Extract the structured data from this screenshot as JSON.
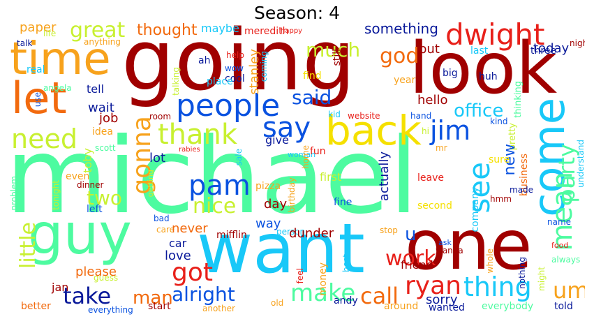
{
  "title": "Season: 4",
  "palette": {
    "dark_red": "#a00000",
    "red": "#e8201a",
    "orange": "#f26a0e",
    "amber": "#f7a21c",
    "yellow": "#f5e000",
    "lime": "#c8f030",
    "mint": "#4dfba0",
    "cyan": "#18c8f8",
    "blue": "#0a52e0",
    "navy": "#0a1a9a"
  },
  "words": [
    {
      "text": "michael",
      "color": "mint"
    },
    {
      "text": "going",
      "color": "dark_red"
    },
    {
      "text": "look",
      "color": "dark_red"
    },
    {
      "text": "one",
      "color": "dark_red"
    },
    {
      "text": "want",
      "color": "cyan"
    },
    {
      "text": "guy",
      "color": "mint"
    },
    {
      "text": "time",
      "color": "amber"
    },
    {
      "text": "let",
      "color": "orange"
    },
    {
      "text": "come",
      "color": "cyan"
    },
    {
      "text": "back",
      "color": "yellow"
    },
    {
      "text": "dwight",
      "color": "red"
    },
    {
      "text": "people",
      "color": "blue"
    },
    {
      "text": "jim",
      "color": "blue"
    },
    {
      "text": "pam",
      "color": "blue"
    },
    {
      "text": "say",
      "color": "blue"
    },
    {
      "text": "thank",
      "color": "lime"
    },
    {
      "text": "need",
      "color": "lime"
    },
    {
      "text": "gonna",
      "color": "amber"
    },
    {
      "text": "see",
      "color": "cyan"
    },
    {
      "text": "mean",
      "color": "mint"
    },
    {
      "text": "party",
      "color": "mint"
    },
    {
      "text": "office",
      "color": "cyan"
    },
    {
      "text": "great",
      "color": "lime"
    },
    {
      "text": "much",
      "color": "lime"
    },
    {
      "text": "god",
      "color": "orange"
    },
    {
      "text": "said",
      "color": "blue"
    },
    {
      "text": "thing",
      "color": "cyan"
    },
    {
      "text": "um",
      "color": "amber"
    },
    {
      "text": "ryan",
      "color": "red"
    },
    {
      "text": "work",
      "color": "red"
    },
    {
      "text": "got",
      "color": "red"
    },
    {
      "text": "take",
      "color": "navy"
    },
    {
      "text": "make",
      "color": "mint"
    },
    {
      "text": "call",
      "color": "orange"
    },
    {
      "text": "alright",
      "color": "blue"
    },
    {
      "text": "man",
      "color": "orange"
    },
    {
      "text": "nice",
      "color": "lime"
    },
    {
      "text": "two",
      "color": "lime"
    },
    {
      "text": "little",
      "color": "lime"
    },
    {
      "text": "thought",
      "color": "orange"
    },
    {
      "text": "something",
      "color": "navy"
    },
    {
      "text": "today",
      "color": "navy"
    },
    {
      "text": "paper",
      "color": "amber"
    },
    {
      "text": "maybe",
      "color": "cyan"
    },
    {
      "text": "meredith",
      "color": "red"
    },
    {
      "text": "happy",
      "color": "red"
    },
    {
      "text": "night",
      "color": "dark_red"
    },
    {
      "text": "last",
      "color": "cyan"
    },
    {
      "text": "three",
      "color": "navy"
    },
    {
      "text": "put",
      "color": "dark_red"
    },
    {
      "text": "stanley",
      "color": "amber"
    },
    {
      "text": "coming",
      "color": "cyan"
    },
    {
      "text": "still",
      "color": "dark_red"
    },
    {
      "text": "find",
      "color": "yellow"
    },
    {
      "text": "year",
      "color": "amber"
    },
    {
      "text": "hello",
      "color": "dark_red"
    },
    {
      "text": "big",
      "color": "navy"
    },
    {
      "text": "huh",
      "color": "navy"
    },
    {
      "text": "thinking",
      "color": "mint"
    },
    {
      "text": "ah",
      "color": "navy"
    },
    {
      "text": "help",
      "color": "red"
    },
    {
      "text": "wow",
      "color": "blue"
    },
    {
      "text": "cool",
      "color": "navy"
    },
    {
      "text": "place",
      "color": "cyan"
    },
    {
      "text": "talking",
      "color": "lime"
    },
    {
      "text": "real",
      "color": "cyan"
    },
    {
      "text": "talk",
      "color": "navy"
    },
    {
      "text": "life",
      "color": "lime"
    },
    {
      "text": "anything",
      "color": "amber"
    },
    {
      "text": "angela",
      "color": "mint"
    },
    {
      "text": "use",
      "color": "blue"
    },
    {
      "text": "tell",
      "color": "navy"
    },
    {
      "text": "wait",
      "color": "navy"
    },
    {
      "text": "job",
      "color": "dark_red"
    },
    {
      "text": "idea",
      "color": "amber"
    },
    {
      "text": "room",
      "color": "dark_red"
    },
    {
      "text": "kid",
      "color": "cyan"
    },
    {
      "text": "website",
      "color": "red"
    },
    {
      "text": "hand",
      "color": "blue"
    },
    {
      "text": "kind",
      "color": "blue"
    },
    {
      "text": "hi",
      "color": "lime"
    },
    {
      "text": "pretty",
      "color": "lime"
    },
    {
      "text": "new",
      "color": "blue"
    },
    {
      "text": "business",
      "color": "orange"
    },
    {
      "text": "scott",
      "color": "mint"
    },
    {
      "text": "rabies",
      "color": "red"
    },
    {
      "text": "give",
      "color": "navy"
    },
    {
      "text": "woman",
      "color": "cyan"
    },
    {
      "text": "home",
      "color": "amber"
    },
    {
      "text": "fun",
      "color": "red"
    },
    {
      "text": "sale",
      "color": "cyan"
    },
    {
      "text": "sure",
      "color": "yellow"
    },
    {
      "text": "mr",
      "color": "amber"
    },
    {
      "text": "understand",
      "color": "cyan"
    },
    {
      "text": "toby",
      "color": "lime"
    },
    {
      "text": "lot",
      "color": "navy"
    },
    {
      "text": "first",
      "color": "lime"
    },
    {
      "text": "actually",
      "color": "navy"
    },
    {
      "text": "leave",
      "color": "red"
    },
    {
      "text": "made",
      "color": "navy"
    },
    {
      "text": "hmm",
      "color": "dark_red"
    },
    {
      "text": "even",
      "color": "amber"
    },
    {
      "text": "dinner",
      "color": "dark_red"
    },
    {
      "text": "getting",
      "color": "lime"
    },
    {
      "text": "pizza",
      "color": "amber"
    },
    {
      "text": "birthday",
      "color": "amber"
    },
    {
      "text": "company",
      "color": "cyan"
    },
    {
      "text": "second",
      "color": "yellow"
    },
    {
      "text": "tonight",
      "color": "lime"
    },
    {
      "text": "left",
      "color": "blue"
    },
    {
      "text": "fine",
      "color": "blue"
    },
    {
      "text": "problem",
      "color": "mint"
    },
    {
      "text": "day",
      "color": "dark_red"
    },
    {
      "text": "bad",
      "color": "blue"
    },
    {
      "text": "care",
      "color": "amber"
    },
    {
      "text": "way",
      "color": "blue"
    },
    {
      "text": "person",
      "color": "cyan"
    },
    {
      "text": "stop",
      "color": "amber"
    },
    {
      "text": "name",
      "color": "blue"
    },
    {
      "text": "never",
      "color": "orange"
    },
    {
      "text": "mifflin",
      "color": "dark_red"
    },
    {
      "text": "dunder",
      "color": "dark_red"
    },
    {
      "text": "car",
      "color": "navy"
    },
    {
      "text": "u",
      "color": "blue"
    },
    {
      "text": "ask",
      "color": "blue"
    },
    {
      "text": "wanna",
      "color": "dark_red"
    },
    {
      "text": "food",
      "color": "red"
    },
    {
      "text": "always",
      "color": "mint"
    },
    {
      "text": "love",
      "color": "navy"
    },
    {
      "text": "whole",
      "color": "amber"
    },
    {
      "text": "might",
      "color": "lime"
    },
    {
      "text": "nothing",
      "color": "navy"
    },
    {
      "text": "please",
      "color": "orange"
    },
    {
      "text": "friend",
      "color": "dark_red"
    },
    {
      "text": "guess",
      "color": "lime"
    },
    {
      "text": "jan",
      "color": "dark_red"
    },
    {
      "text": "feel",
      "color": "red"
    },
    {
      "text": "money",
      "color": "amber"
    },
    {
      "text": "best",
      "color": "cyan"
    },
    {
      "text": "sorry",
      "color": "navy"
    },
    {
      "text": "andy",
      "color": "navy"
    },
    {
      "text": "old",
      "color": "amber"
    },
    {
      "text": "better",
      "color": "orange"
    },
    {
      "text": "everything",
      "color": "blue"
    },
    {
      "text": "start",
      "color": "dark_red"
    },
    {
      "text": "another",
      "color": "amber"
    },
    {
      "text": "around",
      "color": "amber"
    },
    {
      "text": "wanted",
      "color": "navy"
    },
    {
      "text": "everybody",
      "color": "mint"
    },
    {
      "text": "told",
      "color": "navy"
    }
  ]
}
